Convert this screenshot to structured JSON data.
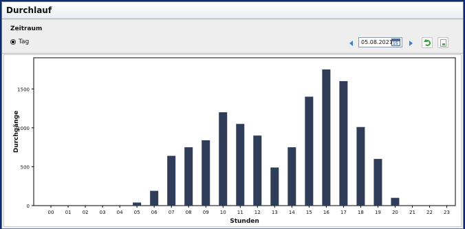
{
  "window": {
    "title": "Durchlauf"
  },
  "toolbar": {
    "section_label": "Zeitraum",
    "radio_label": "Tag",
    "date_value": "05.08.2021",
    "calendar_day": "15"
  },
  "colors": {
    "bar": "#2f3d59",
    "accent": "#3b7fd0"
  },
  "chart_data": {
    "type": "bar",
    "categories": [
      "00",
      "01",
      "02",
      "03",
      "04",
      "05",
      "06",
      "07",
      "08",
      "09",
      "10",
      "11",
      "12",
      "13",
      "14",
      "15",
      "16",
      "17",
      "18",
      "19",
      "20",
      "21",
      "22",
      "23"
    ],
    "values": [
      0,
      0,
      0,
      0,
      0,
      40,
      190,
      640,
      750,
      840,
      1200,
      1050,
      900,
      490,
      750,
      1400,
      1750,
      1600,
      1010,
      600,
      100,
      0,
      0,
      0
    ],
    "xlabel": "Stunden",
    "ylabel": "Durchgänge",
    "yticks": [
      0,
      500,
      1000,
      1500
    ],
    "ylim": [
      0,
      1900
    ],
    "grid": false
  }
}
